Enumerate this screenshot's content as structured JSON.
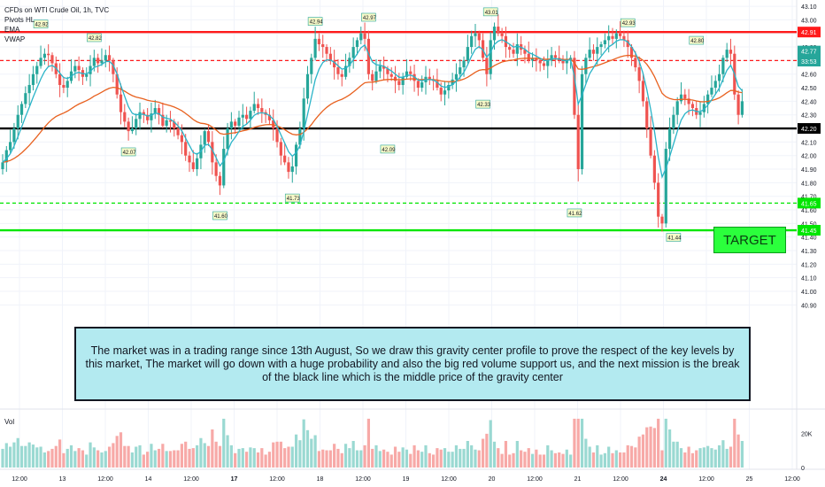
{
  "legend": {
    "title": "CFDs on WTI Crude Oil, 1h, TVC",
    "indicators": [
      "Pivots HL",
      "EMA",
      "VWAP"
    ]
  },
  "colors": {
    "up": "#26a69a",
    "down": "#ef5350",
    "ema": "#e8611f",
    "vwap": "#2ab4c8",
    "resistance": "#ff1a1a",
    "support": "#00e600",
    "middle": "#000000",
    "last_price": "#26a69a"
  },
  "note_text": "The market was in a trading range since 13th August, So we draw this gravity center profile to prove the respect of the key levels by this market, The market will go down with a huge probability and also the big red volume support us, and the next mission is the break of the black line which is the middle price of the gravity center",
  "target_label": "TARGET",
  "volume_label": "Vol",
  "chart_data": {
    "type": "candlestick",
    "title": "CFDs on WTI Crude Oil, 1h, TVC",
    "ylim": [
      40.85,
      43.12
    ],
    "y_ticks": [
      40.9,
      41.0,
      41.1,
      41.2,
      41.3,
      41.4,
      41.5,
      41.6,
      41.7,
      41.8,
      41.9,
      42.0,
      42.1,
      42.2,
      42.3,
      42.4,
      42.5,
      42.6,
      42.7,
      42.8,
      42.9,
      43.0,
      43.1
    ],
    "x_ticks": [
      "12:00",
      "13",
      "12:00",
      "14",
      "12:00",
      "17",
      "12:00",
      "18",
      "12:00",
      "19",
      "12:00",
      "20",
      "12:00",
      "21",
      "12:00",
      "24",
      "12:00",
      "25",
      "12:00"
    ],
    "x_tick_bold": [
      "17",
      "24"
    ],
    "levels": [
      {
        "price": 42.91,
        "label": "42.91",
        "style": "solid",
        "color": "#ff1a1a"
      },
      {
        "price": 42.7,
        "label": "42.70",
        "style": "dashed",
        "color": "#ff1a1a"
      },
      {
        "price": 42.2,
        "label": "42.20",
        "style": "solid",
        "color": "#000000"
      },
      {
        "price": 41.65,
        "label": "41.65",
        "style": "dashed",
        "color": "#00e600"
      },
      {
        "price": 41.45,
        "label": "41.45",
        "style": "solid",
        "color": "#00e600"
      }
    ],
    "price_badges": [
      {
        "label": "42.77",
        "price": 42.77,
        "color": "#26a69a"
      },
      {
        "label": "33:53",
        "price": 42.735,
        "color": "#26a69a"
      }
    ],
    "pivot_labels": [
      {
        "label": "42.92",
        "price": 42.92,
        "x_index": 10
      },
      {
        "label": "42.82",
        "price": 42.82,
        "x_index": 24
      },
      {
        "label": "42.07",
        "price": 42.07,
        "x_index": 33
      },
      {
        "label": "41.60",
        "price": 41.6,
        "x_index": 57
      },
      {
        "label": "41.73",
        "price": 41.73,
        "x_index": 76
      },
      {
        "label": "42.94",
        "price": 42.94,
        "x_index": 82
      },
      {
        "label": "42.97",
        "price": 42.97,
        "x_index": 96
      },
      {
        "label": "42.09",
        "price": 42.09,
        "x_index": 101
      },
      {
        "label": "42.33",
        "price": 42.33,
        "x_index": 126
      },
      {
        "label": "43.01",
        "price": 43.01,
        "x_index": 128
      },
      {
        "label": "41.62",
        "price": 41.62,
        "x_index": 150
      },
      {
        "label": "42.93",
        "price": 42.93,
        "x_index": 164
      },
      {
        "label": "41.44",
        "price": 41.44,
        "x_index": 176
      },
      {
        "label": "42.80",
        "price": 42.8,
        "x_index": 182
      }
    ],
    "volume_ticks": [
      "20K",
      "0"
    ],
    "volume_max": 30000,
    "closes": [
      41.95,
      42.04,
      42.1,
      42.2,
      42.3,
      42.38,
      42.46,
      42.52,
      42.6,
      42.66,
      42.72,
      42.75,
      42.74,
      42.68,
      42.6,
      42.52,
      42.5,
      42.55,
      42.62,
      42.66,
      42.63,
      42.58,
      42.6,
      42.66,
      42.72,
      42.68,
      42.7,
      42.74,
      42.7,
      42.6,
      42.45,
      42.32,
      42.25,
      42.18,
      42.2,
      42.27,
      42.32,
      42.3,
      42.26,
      42.31,
      42.35,
      42.3,
      42.22,
      42.26,
      42.25,
      42.2,
      42.15,
      42.1,
      42.0,
      41.95,
      41.9,
      41.98,
      42.08,
      42.18,
      42.1,
      41.95,
      41.85,
      41.78,
      42.05,
      42.2,
      42.25,
      42.22,
      42.28,
      42.3,
      42.27,
      42.33,
      42.38,
      42.35,
      42.32,
      42.3,
      42.26,
      42.2,
      42.1,
      42.0,
      41.95,
      41.88,
      41.92,
      42.08,
      42.2,
      42.42,
      42.6,
      42.72,
      42.86,
      42.82,
      42.8,
      42.75,
      42.7,
      42.65,
      42.6,
      42.58,
      42.66,
      42.72,
      42.8,
      42.85,
      42.9,
      42.86,
      42.6,
      42.55,
      42.62,
      42.66,
      42.64,
      42.6,
      42.58,
      42.55,
      42.52,
      42.58,
      42.62,
      42.6,
      42.55,
      42.5,
      42.54,
      42.58,
      42.56,
      42.55,
      42.5,
      42.45,
      42.48,
      42.52,
      42.56,
      42.6,
      42.65,
      42.7,
      42.8,
      42.88,
      42.9,
      42.85,
      42.72,
      42.6,
      42.85,
      42.95,
      42.9,
      42.88,
      42.8,
      42.78,
      42.75,
      42.82,
      42.78,
      42.75,
      42.7,
      42.72,
      42.7,
      42.68,
      42.66,
      42.7,
      42.74,
      42.72,
      42.7,
      42.68,
      42.7,
      42.72,
      42.3,
      41.9,
      42.6,
      42.72,
      42.78,
      42.75,
      42.8,
      42.82,
      42.85,
      42.88,
      42.86,
      42.9,
      42.88,
      42.85,
      42.8,
      42.72,
      42.65,
      42.55,
      42.4,
      42.2,
      42.0,
      41.8,
      41.55,
      41.5,
      42.05,
      42.2,
      42.3,
      42.4,
      42.45,
      42.42,
      42.38,
      42.35,
      42.3,
      42.32,
      42.38,
      42.45,
      42.5,
      42.55,
      42.6,
      42.72,
      42.78,
      42.75,
      42.45,
      42.3,
      42.4
    ]
  }
}
